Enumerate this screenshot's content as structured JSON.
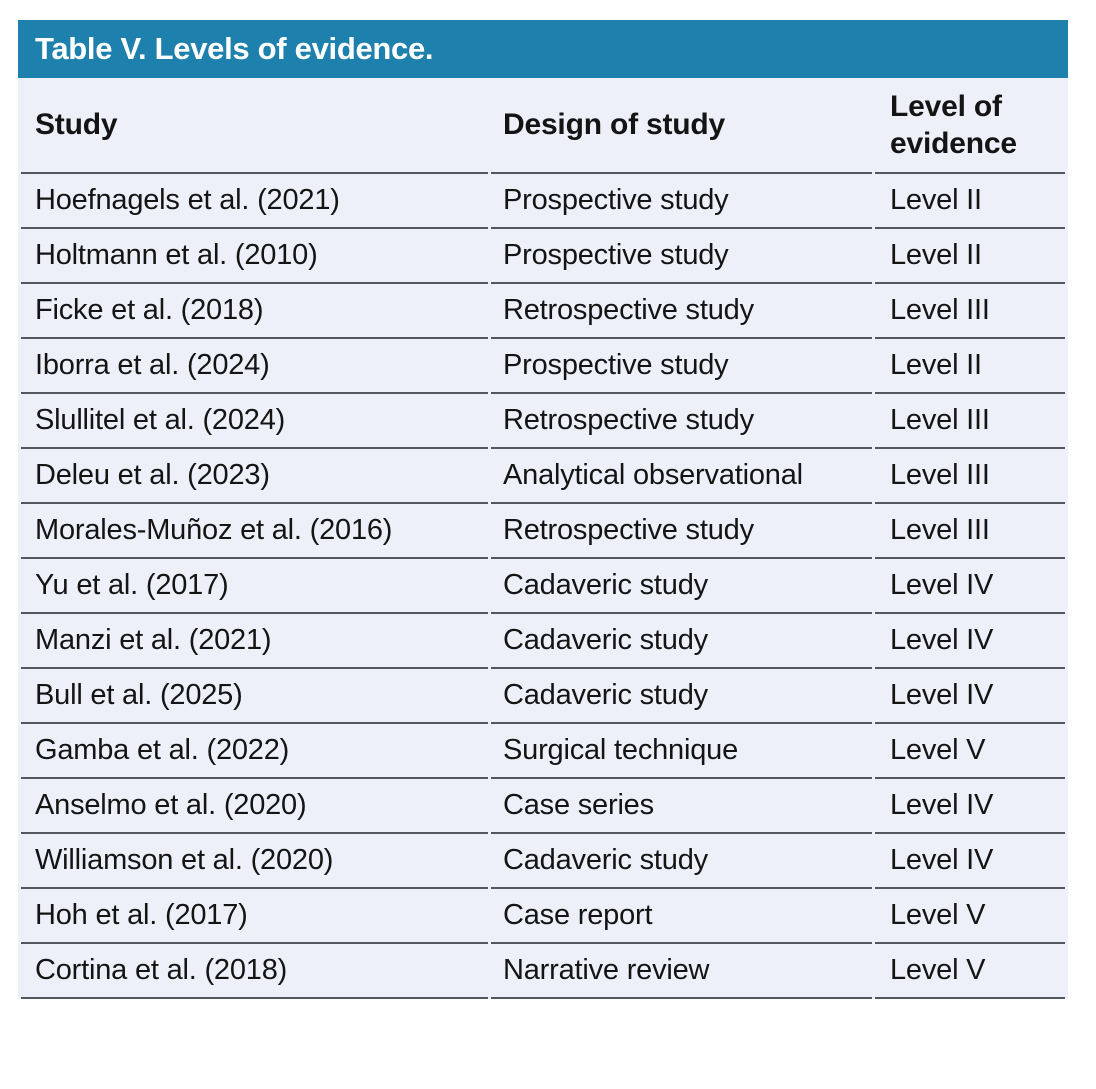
{
  "colors": {
    "title_bar_background": "#1E80AC",
    "title_text": "#FFFFFF",
    "table_background": "#EDF0F8",
    "row_divider": "#53565E",
    "body_text": "#141414",
    "page_background": "#FFFFFF"
  },
  "table": {
    "title": "Table V. Levels of evidence.",
    "columns": [
      "Study",
      "Design of study",
      "Level of evidence"
    ],
    "rows": [
      {
        "study": "Hoefnagels et al. (2021)",
        "design": "Prospective study",
        "level": "Level II"
      },
      {
        "study": "Holtmann et al. (2010)",
        "design": "Prospective study",
        "level": "Level II"
      },
      {
        "study": "Ficke et al. (2018)",
        "design": "Retrospective study",
        "level": "Level III"
      },
      {
        "study": "Iborra et al. (2024)",
        "design": "Prospective study",
        "level": "Level II"
      },
      {
        "study": "Slullitel et al. (2024)",
        "design": "Retrospective study",
        "level": "Level III"
      },
      {
        "study": "Deleu et al. (2023)",
        "design": "Analytical observational",
        "level": "Level III"
      },
      {
        "study": "Morales-Muñoz et al. (2016)",
        "design": "Retrospective study",
        "level": "Level III"
      },
      {
        "study": "Yu et al. (2017)",
        "design": "Cadaveric study",
        "level": "Level IV"
      },
      {
        "study": "Manzi et al. (2021)",
        "design": "Cadaveric study",
        "level": "Level IV"
      },
      {
        "study": "Bull et al. (2025)",
        "design": "Cadaveric study",
        "level": "Level IV"
      },
      {
        "study": "Gamba et al. (2022)",
        "design": "Surgical technique",
        "level": "Level V"
      },
      {
        "study": "Anselmo et al. (2020)",
        "design": "Case series",
        "level": "Level IV"
      },
      {
        "study": "Williamson et al. (2020)",
        "design": "Cadaveric study",
        "level": "Level IV"
      },
      {
        "study": "Hoh et al. (2017)",
        "design": "Case report",
        "level": "Level V"
      },
      {
        "study": "Cortina et al. (2018)",
        "design": "Narrative review",
        "level": "Level V"
      }
    ]
  }
}
